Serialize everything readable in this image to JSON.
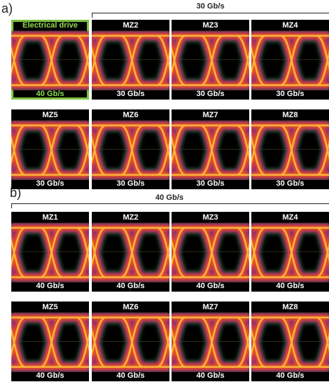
{
  "part_a": {
    "label": "a)",
    "bracket_label": "30 Gb/s",
    "panels": [
      {
        "name": "Electrical drive",
        "rate": "40 Gb/s"
      },
      {
        "name": "MZ2",
        "rate": "30 Gb/s"
      },
      {
        "name": "MZ3",
        "rate": "30 Gb/s"
      },
      {
        "name": "MZ4",
        "rate": "30 Gb/s"
      },
      {
        "name": "MZ5",
        "rate": "30 Gb/s"
      },
      {
        "name": "MZ6",
        "rate": "30 Gb/s"
      },
      {
        "name": "MZ7",
        "rate": "30 Gb/s"
      },
      {
        "name": "MZ8",
        "rate": "30 Gb/s"
      }
    ]
  },
  "part_b": {
    "label": "b)",
    "bracket_label": "40 Gb/s",
    "panels": [
      {
        "name": "MZ1",
        "rate": "40 Gb/s"
      },
      {
        "name": "MZ2",
        "rate": "40 Gb/s"
      },
      {
        "name": "MZ3",
        "rate": "40 Gb/s"
      },
      {
        "name": "MZ4",
        "rate": "40 Gb/s"
      },
      {
        "name": "MZ5",
        "rate": "40 Gb/s"
      },
      {
        "name": "MZ6",
        "rate": "40 Gb/s"
      },
      {
        "name": "MZ7",
        "rate": "40 Gb/s"
      },
      {
        "name": "MZ8",
        "rate": "40 Gb/s"
      }
    ]
  }
}
